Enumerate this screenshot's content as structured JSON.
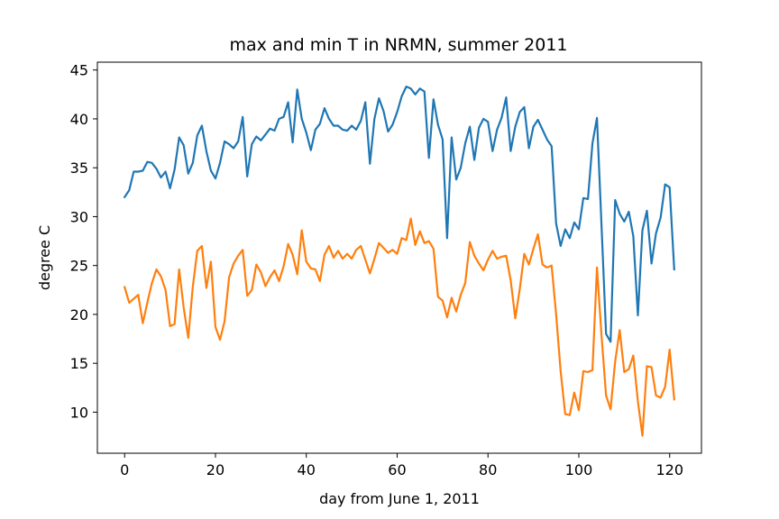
{
  "chart_data": {
    "type": "line",
    "title": "max and min T in NRMN, summer 2011",
    "xlabel": "day from June 1, 2011",
    "ylabel": "degree C",
    "xlim": [
      -6,
      127
    ],
    "ylim": [
      5.8,
      45.8
    ],
    "xticks": [
      "0",
      "20",
      "40",
      "60",
      "80",
      "100",
      "120"
    ],
    "yticks": [
      "10",
      "15",
      "20",
      "25",
      "30",
      "35",
      "40",
      "45"
    ],
    "grid": false,
    "legend": "none",
    "x": [
      0,
      1,
      2,
      3,
      4,
      5,
      6,
      7,
      8,
      9,
      10,
      11,
      12,
      13,
      14,
      15,
      16,
      17,
      18,
      19,
      20,
      21,
      22,
      23,
      24,
      25,
      26,
      27,
      28,
      29,
      30,
      31,
      32,
      33,
      34,
      35,
      36,
      37,
      38,
      39,
      40,
      41,
      42,
      43,
      44,
      45,
      46,
      47,
      48,
      49,
      50,
      51,
      52,
      53,
      54,
      55,
      56,
      57,
      58,
      59,
      60,
      61,
      62,
      63,
      64,
      65,
      66,
      67,
      68,
      69,
      70,
      71,
      72,
      73,
      74,
      75,
      76,
      77,
      78,
      79,
      80,
      81,
      82,
      83,
      84,
      85,
      86,
      87,
      88,
      89,
      90,
      91,
      92,
      93,
      94,
      95,
      96,
      97,
      98,
      99,
      100,
      101,
      102,
      103,
      104,
      105,
      106,
      107,
      108,
      109,
      110,
      111,
      112,
      113,
      114,
      115,
      116,
      117,
      118,
      119,
      120,
      121
    ],
    "series": [
      {
        "color": "#1f77b4",
        "values": [
          32.0,
          32.7,
          34.6,
          34.6,
          34.7,
          35.6,
          35.5,
          34.9,
          34.0,
          34.6,
          32.9,
          34.8,
          38.1,
          37.3,
          34.4,
          35.5,
          38.3,
          39.3,
          36.7,
          34.7,
          33.9,
          35.5,
          37.7,
          37.4,
          37.0,
          37.7,
          40.2,
          34.1,
          37.4,
          38.2,
          37.8,
          38.4,
          39.0,
          38.8,
          40.0,
          40.2,
          41.7,
          37.6,
          43.0,
          40.0,
          38.6,
          36.8,
          38.9,
          39.5,
          41.1,
          40.0,
          39.3,
          39.3,
          38.9,
          38.8,
          39.3,
          38.9,
          39.8,
          41.7,
          35.4,
          40.0,
          42.1,
          40.8,
          38.7,
          39.4,
          40.7,
          42.3,
          43.3,
          43.1,
          42.5,
          43.1,
          42.8,
          36.0,
          42.0,
          39.4,
          37.9,
          27.8,
          38.1,
          33.8,
          35.0,
          37.5,
          39.2,
          35.8,
          39.1,
          40.0,
          39.7,
          36.7,
          38.9,
          40.1,
          42.2,
          36.7,
          39.2,
          40.7,
          41.2,
          37.0,
          39.2,
          39.9,
          38.9,
          37.9,
          37.2,
          29.3,
          27.0,
          28.7,
          27.8,
          29.4,
          28.7,
          31.9,
          31.8,
          37.5,
          40.1,
          29.0,
          18.0,
          17.2,
          31.7,
          30.3,
          29.5,
          30.5,
          28.0,
          19.9,
          28.6,
          30.6,
          25.2,
          28.3,
          29.9,
          33.3,
          33.0,
          24.6
        ]
      },
      {
        "color": "#ff7f0e",
        "values": [
          22.8,
          21.2,
          21.6,
          22.0,
          19.1,
          21.2,
          23.2,
          24.6,
          23.9,
          22.5,
          18.8,
          19.0,
          24.6,
          20.7,
          17.6,
          22.8,
          26.5,
          27.0,
          22.7,
          25.4,
          18.7,
          17.4,
          19.3,
          23.8,
          25.2,
          26.0,
          26.6,
          21.9,
          22.5,
          25.1,
          24.3,
          22.9,
          23.8,
          24.5,
          23.4,
          24.9,
          27.2,
          26.1,
          24.1,
          28.6,
          25.4,
          24.7,
          24.6,
          23.4,
          26.1,
          27.0,
          25.8,
          26.5,
          25.7,
          26.2,
          25.7,
          26.6,
          27.0,
          25.6,
          24.2,
          25.7,
          27.3,
          26.8,
          26.3,
          26.6,
          26.2,
          27.8,
          27.6,
          29.8,
          27.1,
          28.5,
          27.3,
          27.5,
          26.7,
          21.8,
          21.4,
          19.7,
          21.7,
          20.3,
          22.0,
          23.2,
          27.4,
          26.0,
          25.2,
          24.5,
          25.6,
          26.5,
          25.7,
          25.9,
          26.0,
          23.5,
          19.6,
          22.6,
          26.2,
          25.1,
          26.7,
          28.2,
          25.1,
          24.8,
          25.0,
          20.0,
          14.2,
          9.8,
          9.7,
          12.0,
          10.2,
          14.2,
          14.1,
          14.3,
          24.8,
          17.8,
          11.7,
          10.3,
          15.2,
          18.4,
          14.1,
          14.4,
          15.8,
          11.1,
          7.6,
          14.7,
          14.6,
          11.7,
          11.5,
          12.6,
          16.4,
          11.3
        ]
      }
    ]
  }
}
